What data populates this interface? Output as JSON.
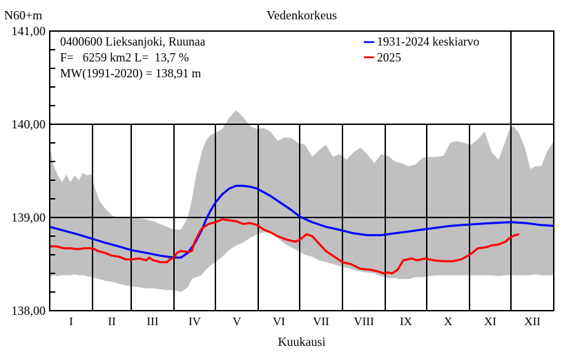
{
  "chart_data": {
    "type": "line",
    "title": "Vedenkorkeus",
    "ylabel": "N60+m",
    "xlabel": "Kuukausi",
    "ylim": [
      138.0,
      141.0
    ],
    "xlim_days": [
      0,
      365
    ],
    "y_ticks": [
      {
        "value": 141.0,
        "label": "141,00"
      },
      {
        "value": 140.0,
        "label": "140,00"
      },
      {
        "value": 139.0,
        "label": "139,00"
      },
      {
        "value": 138.0,
        "label": "138,00"
      }
    ],
    "y_minor_step": 0.2,
    "month_labels": [
      "I",
      "II",
      "III",
      "IV",
      "V",
      "VI",
      "VII",
      "VIII",
      "IX",
      "X",
      "XI",
      "XII"
    ],
    "month_start_days": [
      0,
      31,
      59,
      90,
      120,
      151,
      181,
      212,
      243,
      273,
      304,
      334,
      365
    ],
    "grid": true,
    "info_text": [
      "0400600 Lieksanjoki, Ruunaa",
      "F=   6259 km2 L=  13,7 %",
      "MW(1991-2020) = 138,91 m"
    ],
    "legend_position": "top-right",
    "colors": {
      "mean": "#0000ff",
      "current": "#ff0000",
      "range": "#c0c0c0",
      "axis": "#000000"
    },
    "range_band": {
      "name": "min-max range",
      "x": [
        0,
        3,
        6,
        9,
        12,
        15,
        18,
        21,
        24,
        27,
        30,
        33,
        36,
        40,
        45,
        50,
        55,
        60,
        65,
        70,
        75,
        80,
        85,
        90,
        95,
        100,
        103,
        106,
        110,
        113,
        116,
        120,
        125,
        130,
        135,
        140,
        145,
        150,
        155,
        160,
        165,
        170,
        175,
        180,
        185,
        190,
        195,
        200,
        205,
        210,
        215,
        220,
        225,
        230,
        235,
        240,
        245,
        250,
        255,
        260,
        265,
        270,
        275,
        280,
        285,
        290,
        295,
        300,
        305,
        310,
        315,
        320,
        325,
        330,
        333,
        336,
        340,
        344,
        348,
        352,
        356,
        360,
        365
      ],
      "upper": [
        139.76,
        139.55,
        139.45,
        139.38,
        139.46,
        139.38,
        139.45,
        139.4,
        139.48,
        139.45,
        139.47,
        139.3,
        139.18,
        139.1,
        139.02,
        139.0,
        139.01,
        139.0,
        138.99,
        138.98,
        138.96,
        138.93,
        138.9,
        138.87,
        138.87,
        139.0,
        139.2,
        139.45,
        139.7,
        139.82,
        139.88,
        139.91,
        139.95,
        140.07,
        140.15,
        140.08,
        139.98,
        139.95,
        139.96,
        139.92,
        139.82,
        139.86,
        139.85,
        139.8,
        139.78,
        139.65,
        139.72,
        139.78,
        139.65,
        139.68,
        139.62,
        139.7,
        139.75,
        139.68,
        139.58,
        139.68,
        139.66,
        139.6,
        139.58,
        139.55,
        139.57,
        139.64,
        139.65,
        139.65,
        139.66,
        139.8,
        139.82,
        139.8,
        139.78,
        139.84,
        139.92,
        139.7,
        139.62,
        139.82,
        139.95,
        139.98,
        139.9,
        139.75,
        139.52,
        139.55,
        139.55,
        139.7,
        139.82
      ],
      "lower": [
        138.37,
        138.38,
        138.37,
        138.38,
        138.38,
        138.38,
        138.39,
        138.38,
        138.38,
        138.37,
        138.36,
        138.35,
        138.34,
        138.32,
        138.31,
        138.29,
        138.27,
        138.26,
        138.25,
        138.24,
        138.24,
        138.23,
        138.22,
        138.22,
        138.2,
        138.25,
        138.34,
        138.36,
        138.38,
        138.44,
        138.48,
        138.52,
        138.58,
        138.65,
        138.7,
        138.73,
        138.78,
        138.82,
        138.84,
        138.83,
        138.78,
        138.72,
        138.68,
        138.64,
        138.6,
        138.58,
        138.54,
        138.52,
        138.5,
        138.48,
        138.46,
        138.44,
        138.42,
        138.41,
        138.4,
        138.37,
        138.35,
        138.35,
        138.34,
        138.34,
        138.36,
        138.36,
        138.37,
        138.38,
        138.38,
        138.38,
        138.38,
        138.38,
        138.38,
        138.38,
        138.38,
        138.38,
        138.37,
        138.38,
        138.38,
        138.38,
        138.38,
        138.38,
        138.38,
        138.39,
        138.38,
        138.38,
        138.38
      ]
    },
    "series": [
      {
        "name": "1931-2024 keskiarvo",
        "color": "#0000ff",
        "x": [
          0,
          10,
          20,
          31,
          40,
          50,
          59,
          70,
          80,
          90,
          95,
          100,
          105,
          110,
          113,
          116,
          120,
          125,
          130,
          135,
          140,
          145,
          150,
          155,
          160,
          165,
          170,
          175,
          181,
          190,
          200,
          212,
          220,
          230,
          240,
          250,
          260,
          270,
          280,
          290,
          300,
          310,
          320,
          334,
          345,
          355,
          365
        ],
        "values": [
          138.9,
          138.86,
          138.82,
          138.77,
          138.73,
          138.69,
          138.65,
          138.62,
          138.59,
          138.57,
          138.57,
          138.62,
          138.72,
          138.86,
          138.97,
          139.06,
          139.16,
          139.25,
          139.31,
          139.34,
          139.34,
          139.33,
          139.31,
          139.27,
          139.23,
          139.18,
          139.13,
          139.08,
          139.01,
          138.95,
          138.9,
          138.86,
          138.83,
          138.81,
          138.81,
          138.83,
          138.85,
          138.87,
          138.89,
          138.91,
          138.92,
          138.93,
          138.94,
          138.95,
          138.94,
          138.92,
          138.91
        ]
      },
      {
        "name": "2025",
        "color": "#ff0000",
        "x": [
          0,
          5,
          10,
          15,
          20,
          25,
          31,
          35,
          40,
          45,
          50,
          55,
          59,
          65,
          70,
          72,
          75,
          78,
          80,
          85,
          87,
          90,
          92,
          95,
          100,
          103,
          105,
          110,
          115,
          120,
          125,
          130,
          135,
          140,
          145,
          150,
          155,
          160,
          165,
          170,
          175,
          178,
          181,
          186,
          190,
          195,
          200,
          205,
          212,
          218,
          225,
          232,
          238,
          242,
          245,
          248,
          252,
          256,
          262,
          266,
          272,
          278,
          285,
          292,
          298,
          303,
          306,
          310,
          316,
          320,
          325,
          330,
          333,
          337,
          340
        ],
        "values": [
          138.69,
          138.69,
          138.67,
          138.67,
          138.66,
          138.67,
          138.67,
          138.64,
          138.62,
          138.59,
          138.58,
          138.55,
          138.55,
          138.56,
          138.54,
          138.57,
          138.54,
          138.53,
          138.52,
          138.52,
          138.55,
          138.57,
          138.62,
          138.64,
          138.63,
          138.64,
          138.74,
          138.88,
          138.93,
          138.95,
          138.98,
          138.97,
          138.96,
          138.93,
          138.94,
          138.92,
          138.87,
          138.84,
          138.8,
          138.77,
          138.75,
          138.74,
          138.76,
          138.82,
          138.8,
          138.72,
          138.64,
          138.59,
          138.52,
          138.5,
          138.45,
          138.44,
          138.42,
          138.4,
          138.41,
          138.4,
          138.44,
          138.54,
          138.56,
          138.54,
          138.56,
          138.54,
          138.53,
          138.53,
          138.55,
          138.59,
          138.62,
          138.67,
          138.68,
          138.7,
          138.71,
          138.74,
          138.78,
          138.81,
          138.82
        ]
      }
    ]
  }
}
